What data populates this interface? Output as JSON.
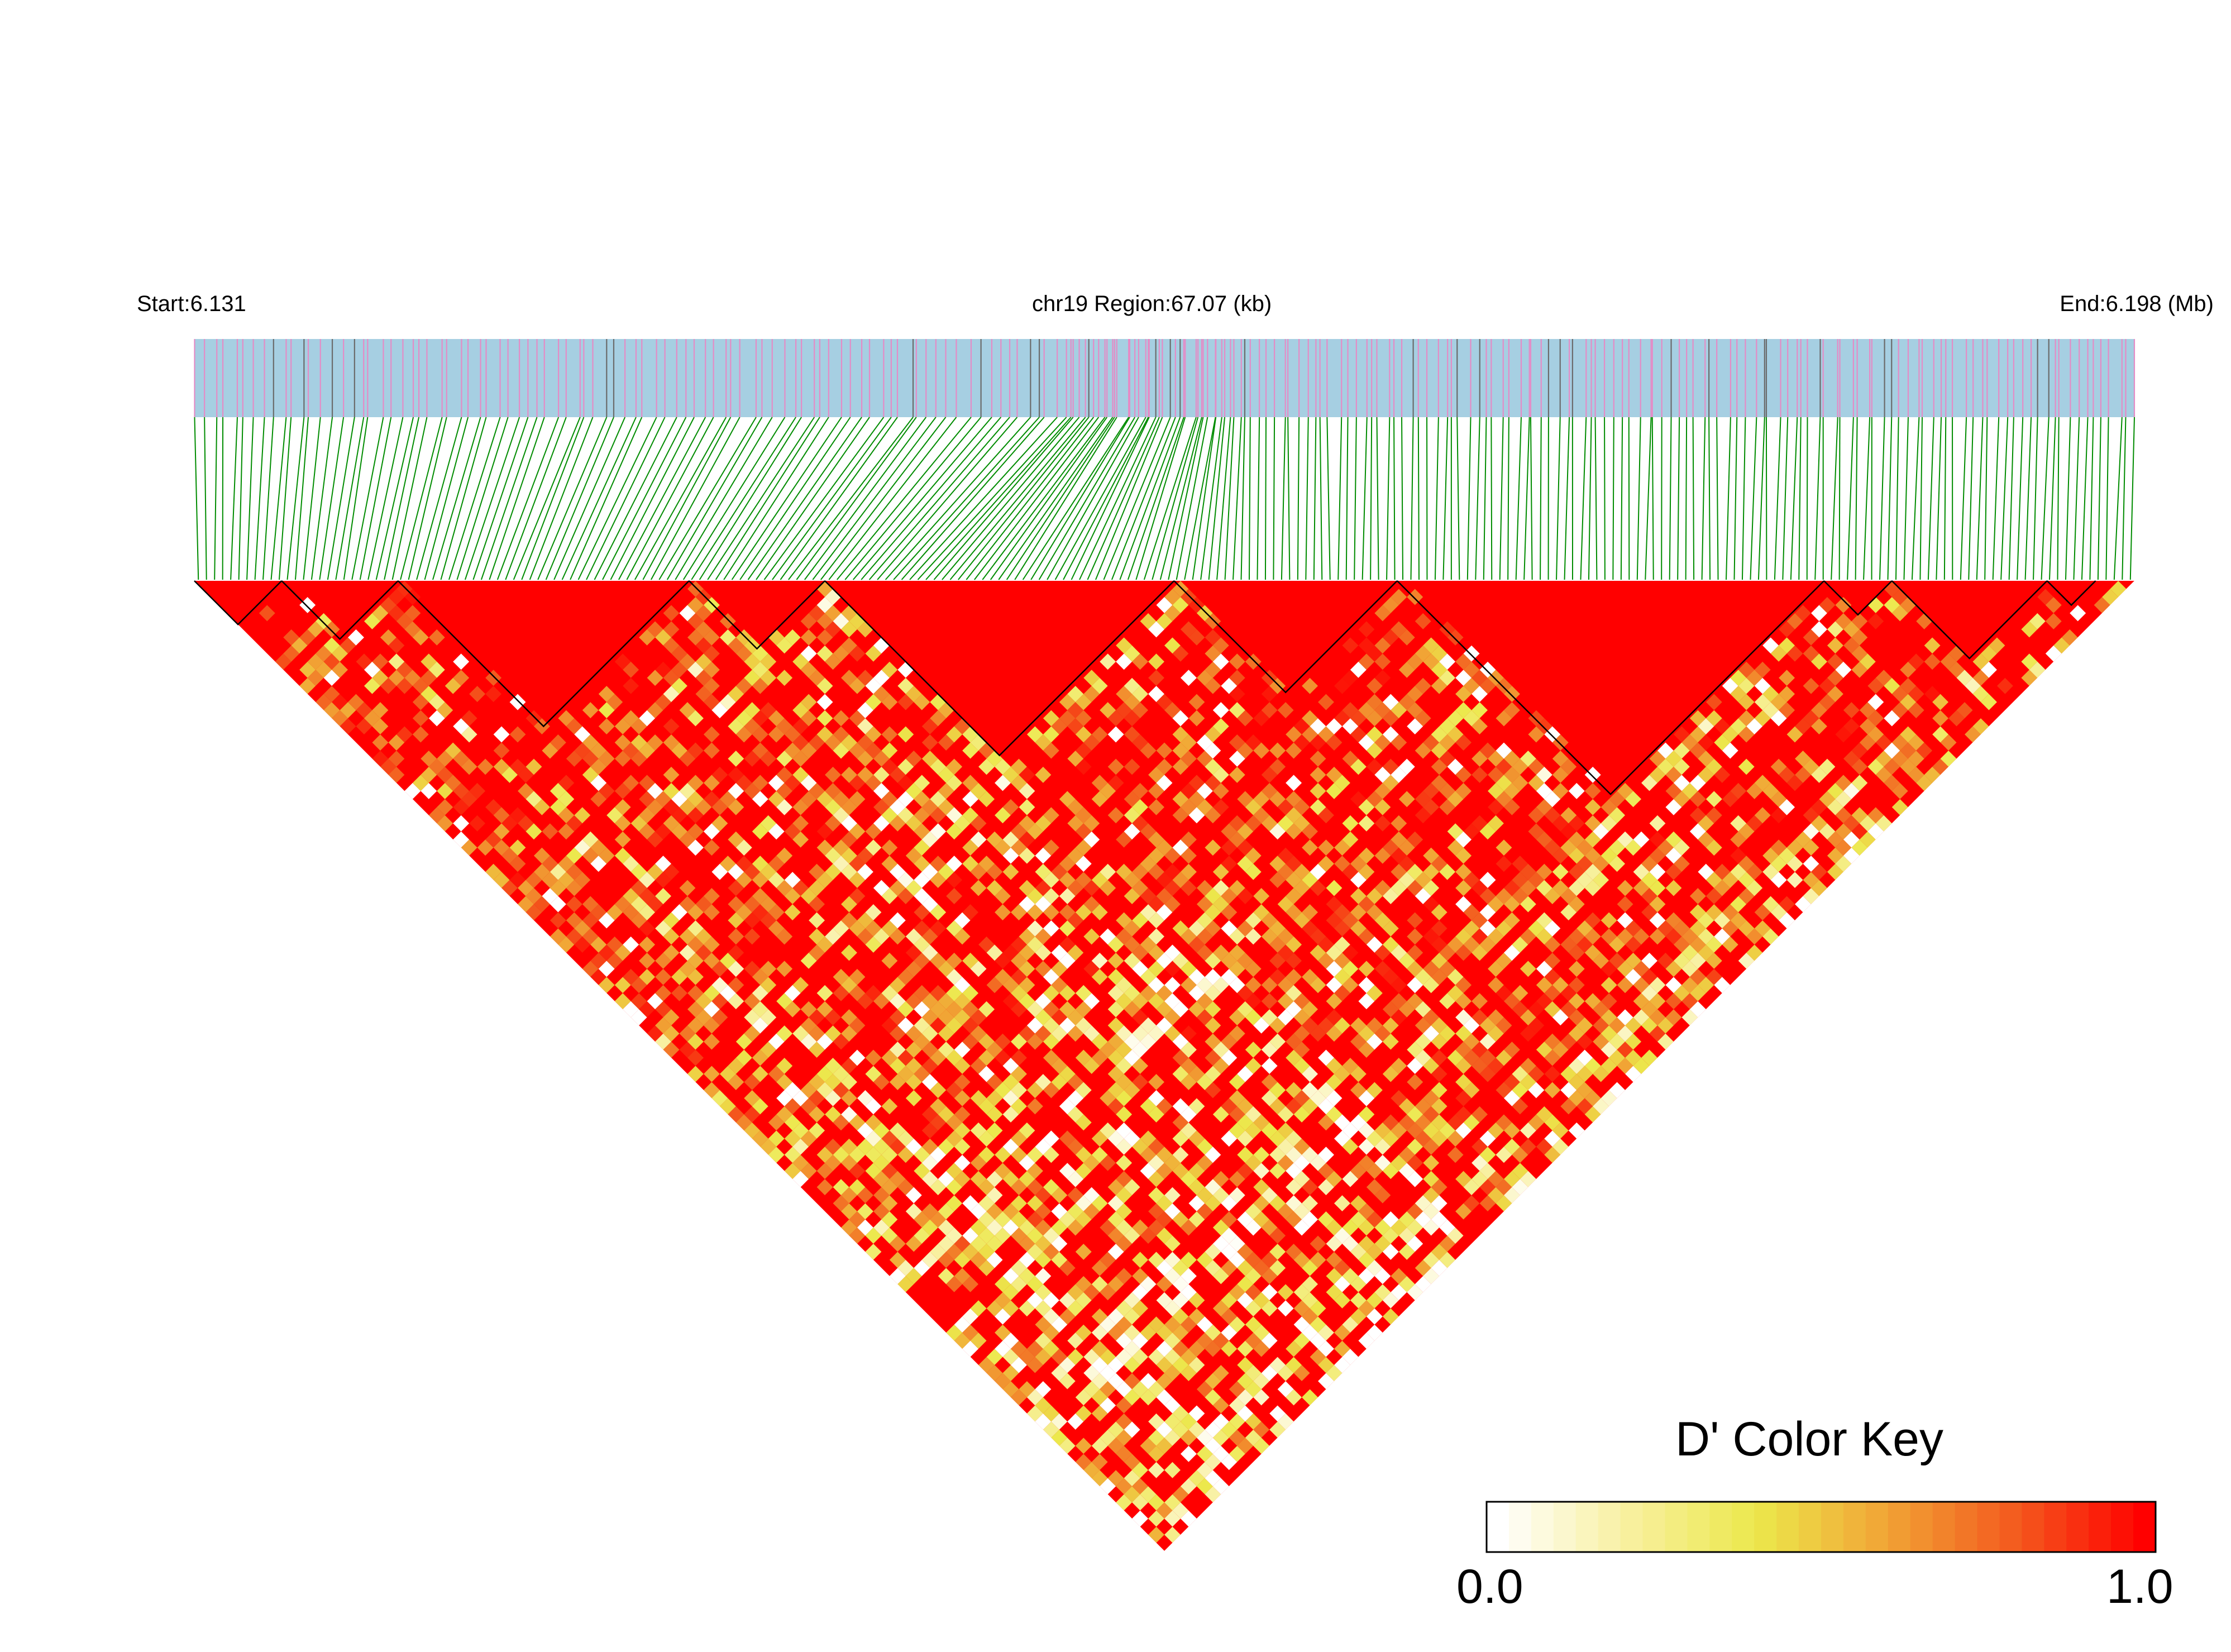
{
  "header": {
    "start_label": "Start:6.131",
    "region_label": "chr19 Region:67.07 (kb)",
    "end_label": "End:6.198 (Mb)"
  },
  "color_key": {
    "title": "D' Color Key",
    "min_label": "0.0",
    "max_label": "1.0",
    "stops": [
      "#ffffff",
      "#f8f0a0",
      "#ece84c",
      "#f1a435",
      "#f35a1e",
      "#ff0000"
    ]
  },
  "colors": {
    "track_background": "#a6cfe2",
    "variant_tick_pink": "#e48cc6",
    "variant_tick_gray": "#6b6b6b",
    "connector_lines": "#008c00",
    "block_outline": "#000000"
  },
  "chart_data": {
    "type": "heatmap",
    "title": "",
    "chromosome": "chr19",
    "start_mb": 6.131,
    "end_mb": 6.198,
    "region_kb": 67.07,
    "measure": "D'",
    "value_range": [
      0.0,
      1.0
    ],
    "description_of_values": "Pairwise D' linkage disequilibrium between variants, drawn as a rotated lower triangle; predominantly high D' (red) with mixed lower values (yellow/white) in the lower region.",
    "ld_blocks_fraction_of_region": [
      [
        0.0,
        0.045
      ],
      [
        0.045,
        0.105
      ],
      [
        0.105,
        0.255
      ],
      [
        0.255,
        0.325
      ],
      [
        0.325,
        0.505
      ],
      [
        0.505,
        0.62
      ],
      [
        0.62,
        0.84
      ],
      [
        0.84,
        0.875
      ],
      [
        0.875,
        0.955
      ],
      [
        0.955,
        0.98
      ]
    ]
  }
}
